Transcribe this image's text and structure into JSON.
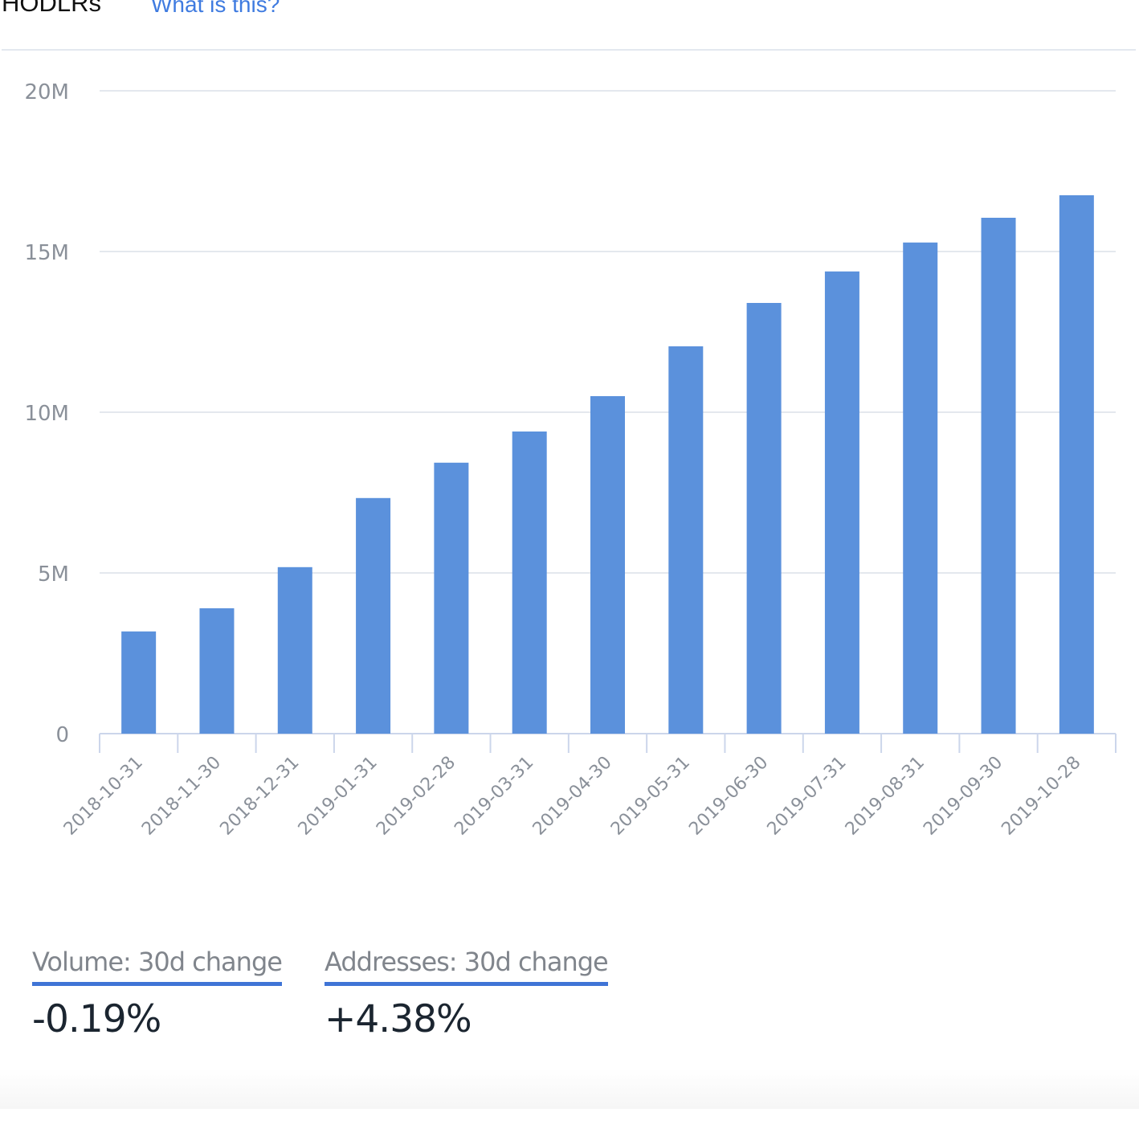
{
  "header": {
    "title": "HODLRs",
    "help_link": "What is this?"
  },
  "chart_data": {
    "type": "bar",
    "title": "HODLRs",
    "xlabel": "",
    "ylabel": "",
    "ylim": [
      0,
      20000000
    ],
    "yticks": [
      0,
      5000000,
      10000000,
      15000000,
      20000000
    ],
    "ytick_labels": [
      "0",
      "5M",
      "10M",
      "15M",
      "20M"
    ],
    "grid": true,
    "bar_color": "#5b91dc",
    "categories": [
      "2018-10-31",
      "2018-11-30",
      "2018-12-31",
      "2019-01-31",
      "2019-02-28",
      "2019-03-31",
      "2019-04-30",
      "2019-05-31",
      "2019-06-30",
      "2019-07-31",
      "2019-08-31",
      "2019-09-30",
      "2019-10-28"
    ],
    "values": [
      3180000,
      3900000,
      5180000,
      7330000,
      8430000,
      9400000,
      10500000,
      12050000,
      13400000,
      14380000,
      15280000,
      16050000,
      16750000
    ]
  },
  "stats": [
    {
      "label": "Volume: 30d change",
      "value": "-0.19%"
    },
    {
      "label": "Addresses: 30d change",
      "value": "+4.38%"
    }
  ]
}
